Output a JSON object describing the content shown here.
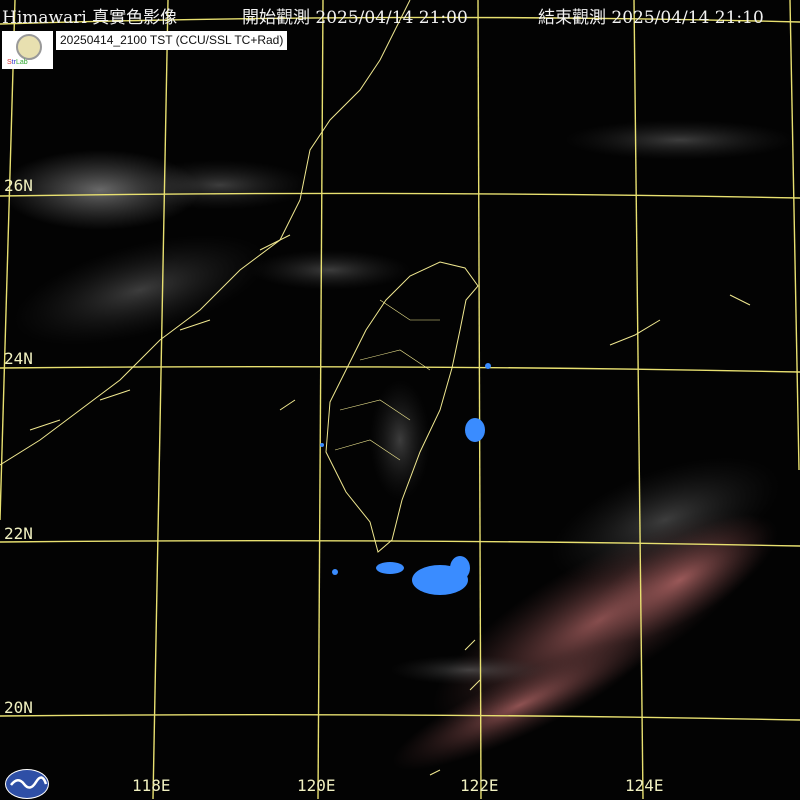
{
  "header": {
    "title": "Himawari 真實色影像",
    "start_label": "開始觀測",
    "start_time": "2025/04/14 21:00",
    "end_label": "結束觀測",
    "end_time": "2025/04/14 21:10"
  },
  "stamp": "20250414_2100 TST (CCU/SSL TC+Rad)",
  "lat_labels": [
    "26N",
    "24N",
    "22N",
    "20N"
  ],
  "lon_labels": [
    "118E",
    "120E",
    "122E",
    "124E"
  ],
  "colors": {
    "grid": "#e8e070",
    "coast": "#f0e890",
    "cloud": "#cfcfcf",
    "warm_cloud": "#c87878",
    "radar": "#3a8cff"
  },
  "icons": {
    "top_logo": "lab-logo",
    "bottom_logo": "cwa-logo"
  }
}
